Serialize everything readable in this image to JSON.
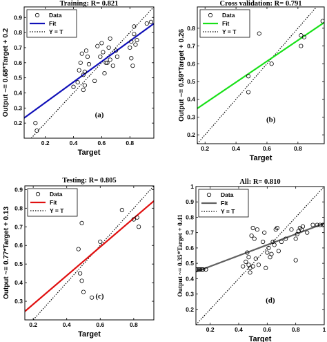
{
  "chart_data": [
    {
      "type": "scatter",
      "title": "Training: R= 0.821",
      "xlabel": "Target",
      "ylabel": "Output ~= 0.68*Target + 0.2",
      "panel_label": "(a)",
      "xlim": [
        0.05,
        0.97
      ],
      "ylim": [
        0.1,
        0.97
      ],
      "xticks": [
        0.2,
        0.4,
        0.6,
        0.8
      ],
      "yticks": [
        0.2,
        0.3,
        0.4,
        0.5,
        0.6,
        0.7,
        0.8,
        0.9
      ],
      "legend": [
        "Data",
        "Fit",
        "Y = T"
      ],
      "legend_position": "top-left",
      "fit": {
        "slope": 0.68,
        "intercept": 0.2,
        "color": "#1010b8"
      },
      "points": [
        [
          0.13,
          0.2
        ],
        [
          0.14,
          0.15
        ],
        [
          0.4,
          0.44
        ],
        [
          0.43,
          0.47
        ],
        [
          0.44,
          0.55
        ],
        [
          0.45,
          0.6
        ],
        [
          0.46,
          0.66
        ],
        [
          0.47,
          0.52
        ],
        [
          0.47,
          0.42
        ],
        [
          0.48,
          0.54
        ],
        [
          0.48,
          0.45
        ],
        [
          0.49,
          0.68
        ],
        [
          0.5,
          0.64
        ],
        [
          0.51,
          0.59
        ],
        [
          0.55,
          0.48
        ],
        [
          0.57,
          0.71
        ],
        [
          0.59,
          0.64
        ],
        [
          0.6,
          0.73
        ],
        [
          0.61,
          0.67
        ],
        [
          0.62,
          0.53
        ],
        [
          0.63,
          0.6
        ],
        [
          0.64,
          0.6
        ],
        [
          0.65,
          0.7
        ],
        [
          0.66,
          0.62
        ],
        [
          0.66,
          0.76
        ],
        [
          0.68,
          0.58
        ],
        [
          0.7,
          0.68
        ],
        [
          0.71,
          0.64
        ],
        [
          0.8,
          0.7
        ],
        [
          0.81,
          0.74
        ],
        [
          0.81,
          0.63
        ],
        [
          0.82,
          0.58
        ],
        [
          0.83,
          0.84
        ],
        [
          0.83,
          0.79
        ],
        [
          0.84,
          0.72
        ],
        [
          0.85,
          0.75
        ],
        [
          0.92,
          0.86
        ],
        [
          0.95,
          0.87
        ]
      ]
    },
    {
      "type": "scatter",
      "title": "Cross validation: R= 0.791",
      "xlabel": "Target",
      "ylabel": "Output ~= 0.59*Target + 0.26",
      "panel_label": "(b)",
      "xlim": [
        0.15,
        0.97
      ],
      "ylim": [
        0.15,
        0.92
      ],
      "xticks": [
        0.2,
        0.4,
        0.6,
        0.8
      ],
      "yticks": [
        0.2,
        0.3,
        0.4,
        0.5,
        0.6,
        0.7,
        0.8
      ],
      "legend": [
        "Data",
        "Fit",
        "Y = T"
      ],
      "legend_position": "top-left",
      "fit": {
        "slope": 0.59,
        "intercept": 0.26,
        "color": "#18e018"
      },
      "points": [
        [
          0.48,
          0.53
        ],
        [
          0.48,
          0.44
        ],
        [
          0.55,
          0.77
        ],
        [
          0.63,
          0.6
        ],
        [
          0.82,
          0.76
        ],
        [
          0.82,
          0.7
        ],
        [
          0.84,
          0.75
        ],
        [
          0.96,
          0.84
        ]
      ]
    },
    {
      "type": "scatter",
      "title": "Testing: R= 0.805",
      "xlabel": "Target",
      "ylabel": "Output ~= 0.77*Target + 0.13",
      "panel_label": "(c)",
      "xlim": [
        0.15,
        0.92
      ],
      "ylim": [
        0.2,
        0.92
      ],
      "xticks": [
        0.2,
        0.4,
        0.6,
        0.8
      ],
      "yticks": [
        0.3,
        0.4,
        0.5,
        0.6,
        0.7,
        0.8,
        0.9
      ],
      "legend": [
        "Data",
        "Fit",
        "Y = T"
      ],
      "legend_position": "top-left",
      "fit": {
        "slope": 0.77,
        "intercept": 0.13,
        "color": "#e01010"
      },
      "points": [
        [
          0.47,
          0.58
        ],
        [
          0.48,
          0.45
        ],
        [
          0.49,
          0.41
        ],
        [
          0.49,
          0.72
        ],
        [
          0.5,
          0.35
        ],
        [
          0.55,
          0.32
        ],
        [
          0.6,
          0.62
        ],
        [
          0.73,
          0.79
        ],
        [
          0.8,
          0.74
        ],
        [
          0.82,
          0.75
        ],
        [
          0.83,
          0.7
        ]
      ]
    },
    {
      "type": "scatter",
      "title": "All: R= 0.810",
      "xlabel": "Target",
      "ylabel": "Output ~= 0.35*Target + 0.41",
      "panel_label": "(d)",
      "xlim": [
        0.1,
        1.0
      ],
      "ylim": [
        0.1,
        1.0
      ],
      "xticks": [
        0.2,
        0.4,
        0.6,
        0.8,
        1
      ],
      "yticks": [
        0.2,
        0.3,
        0.4,
        0.5,
        0.6,
        0.7,
        0.8,
        0.9,
        1
      ],
      "legend": [
        "Data",
        "Fit",
        "Y = T"
      ],
      "legend_position": "top-left",
      "fit": {
        "slope": 0.35,
        "intercept": 0.41,
        "color": "#606060"
      },
      "points": [
        [
          0.1,
          0.46
        ],
        [
          0.11,
          0.46
        ],
        [
          0.12,
          0.46
        ],
        [
          0.13,
          0.46
        ],
        [
          0.14,
          0.46
        ],
        [
          0.15,
          0.46
        ],
        [
          0.17,
          0.46
        ],
        [
          0.43,
          0.48
        ],
        [
          0.45,
          0.51
        ],
        [
          0.46,
          0.57
        ],
        [
          0.47,
          0.54
        ],
        [
          0.47,
          0.49
        ],
        [
          0.48,
          0.44
        ],
        [
          0.48,
          0.47
        ],
        [
          0.49,
          0.68
        ],
        [
          0.5,
          0.48
        ],
        [
          0.5,
          0.73
        ],
        [
          0.51,
          0.66
        ],
        [
          0.52,
          0.53
        ],
        [
          0.53,
          0.72
        ],
        [
          0.54,
          0.49
        ],
        [
          0.57,
          0.64
        ],
        [
          0.58,
          0.7
        ],
        [
          0.59,
          0.47
        ],
        [
          0.6,
          0.57
        ],
        [
          0.61,
          0.6
        ],
        [
          0.62,
          0.54
        ],
        [
          0.63,
          0.56
        ],
        [
          0.64,
          0.64
        ],
        [
          0.65,
          0.62
        ],
        [
          0.66,
          0.72
        ],
        [
          0.67,
          0.73
        ],
        [
          0.68,
          0.58
        ],
        [
          0.7,
          0.64
        ],
        [
          0.73,
          0.66
        ],
        [
          0.77,
          0.72
        ],
        [
          0.8,
          0.52
        ],
        [
          0.8,
          0.66
        ],
        [
          0.81,
          0.69
        ],
        [
          0.82,
          0.71
        ],
        [
          0.83,
          0.73
        ],
        [
          0.84,
          0.72
        ],
        [
          0.85,
          0.74
        ],
        [
          0.88,
          0.7
        ],
        [
          0.92,
          0.75
        ],
        [
          0.95,
          0.75
        ],
        [
          0.97,
          0.75
        ],
        [
          0.99,
          0.75
        ],
        [
          1.0,
          0.75
        ]
      ]
    }
  ]
}
